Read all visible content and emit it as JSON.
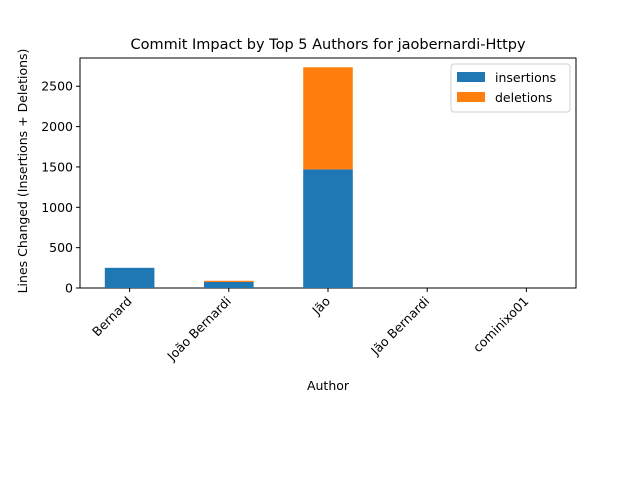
{
  "chart_data": {
    "type": "bar",
    "stacked": true,
    "title": "Commit Impact by Top 5 Authors for jaobernardi-Httpy",
    "xlabel": "Author",
    "ylabel": "Lines Changed (Insertions + Deletions)",
    "categories": [
      "Bernard",
      "João Bernardi",
      "Jão",
      "Jão Bernardi",
      "cominixo01"
    ],
    "series": [
      {
        "name": "insertions",
        "color": "#1f77b4",
        "values": [
          250,
          75,
          1470,
          0,
          0
        ]
      },
      {
        "name": "deletions",
        "color": "#ff7f0e",
        "values": [
          0,
          15,
          1265,
          0,
          0
        ]
      }
    ],
    "ylim": [
      0,
      2850
    ],
    "yticks": [
      0,
      500,
      1000,
      1500,
      2000,
      2500
    ],
    "legend_position": "top-right",
    "grid": false
  }
}
